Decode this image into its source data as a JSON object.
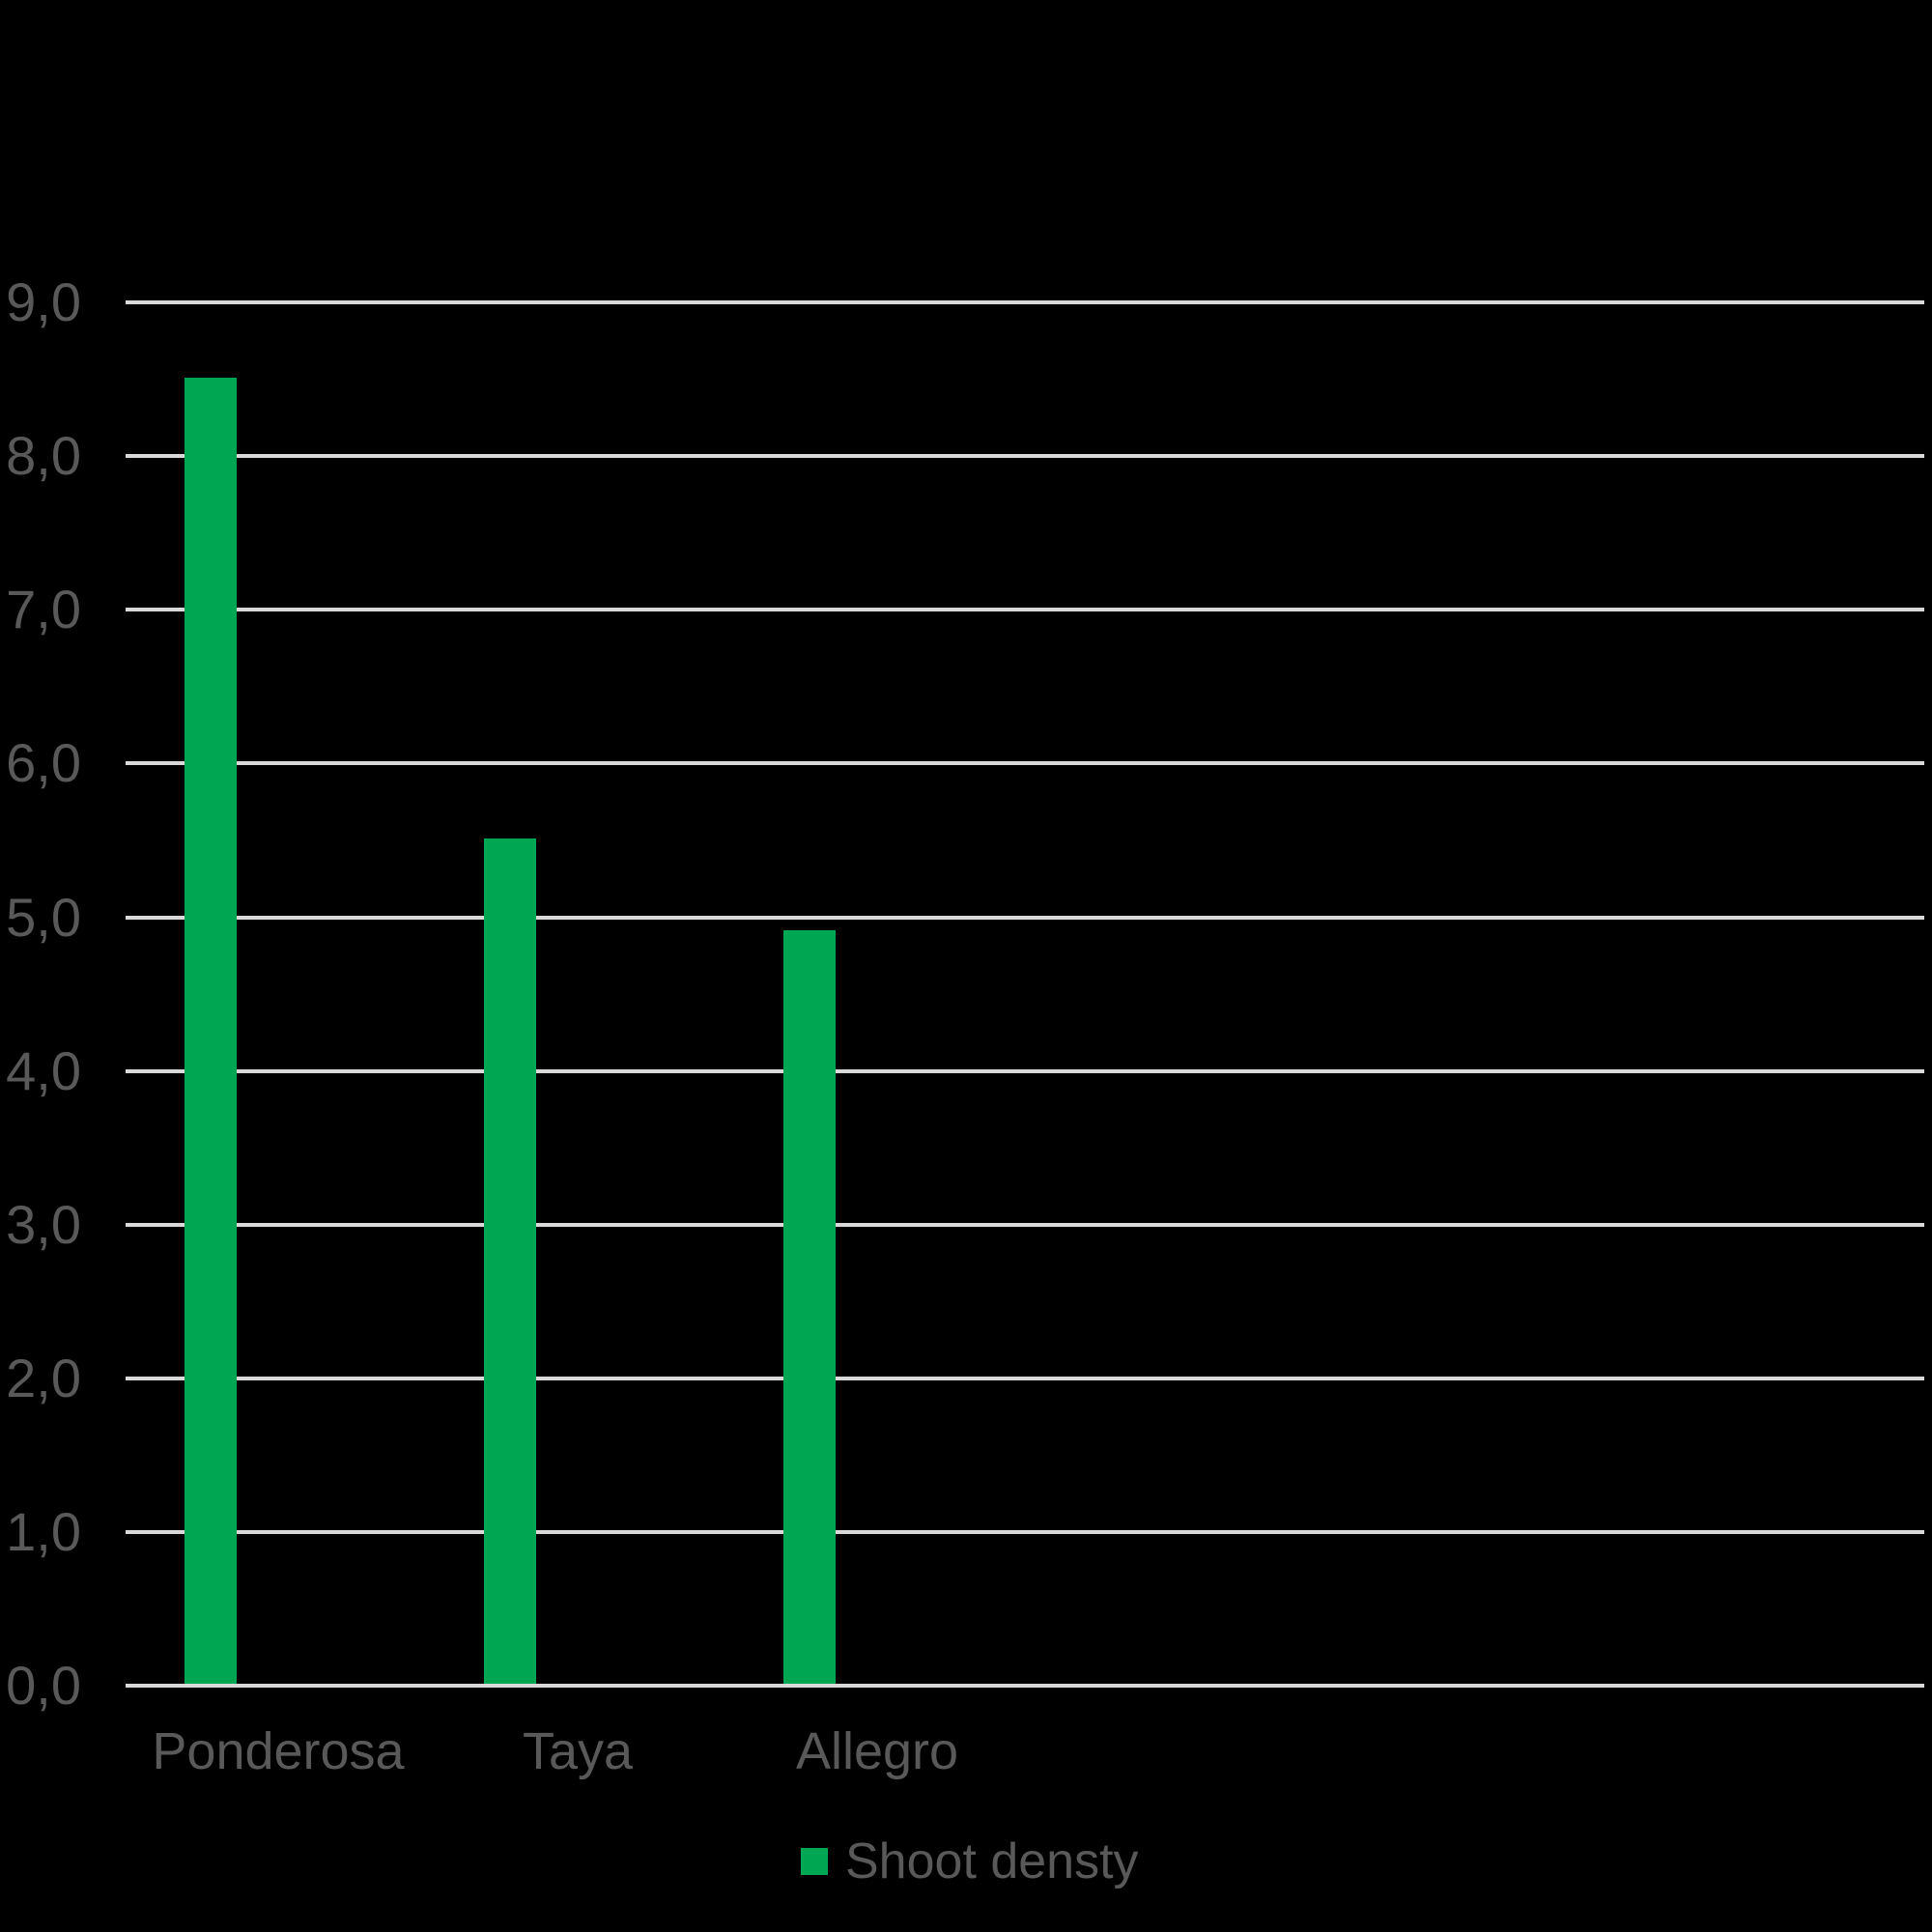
{
  "chart_data": {
    "type": "bar",
    "categories": [
      "Ponderosa",
      "Taya",
      "Allegro"
    ],
    "series": [
      {
        "name": "Shoot densty",
        "values": [
          8.5,
          5.5,
          4.9
        ]
      }
    ],
    "title": "",
    "xlabel": "",
    "ylabel": "",
    "ylim": [
      0,
      9
    ],
    "ytick_step": 1,
    "ytick_labels": [
      "0,0",
      "1,0",
      "2,0",
      "3,0",
      "4,0",
      "5,0",
      "6,0",
      "7,0",
      "8,0",
      "9,0"
    ],
    "grid": true,
    "legend_position": "bottom-center",
    "colors": {
      "bar": "#00A651",
      "gridline": "#D9D9D9",
      "axis_line": "#D9D9D9",
      "text": "#595959",
      "background": "#000000"
    }
  },
  "legend": {
    "items": [
      {
        "label": "Shoot densty",
        "color": "#00A651"
      }
    ]
  }
}
